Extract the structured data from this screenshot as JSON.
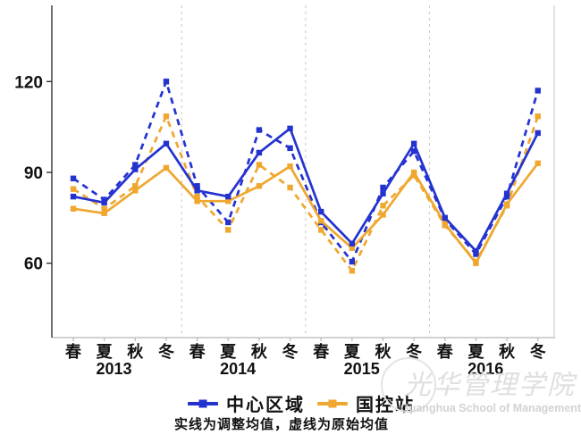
{
  "chart_data": {
    "type": "line",
    "title": "",
    "x_seasons": [
      "春",
      "夏",
      "秋",
      "冬",
      "春",
      "夏",
      "秋",
      "冬",
      "春",
      "夏",
      "秋",
      "冬",
      "春",
      "夏",
      "秋",
      "冬"
    ],
    "years": [
      "2013",
      "2014",
      "2015",
      "2016"
    ],
    "y_ticks": [
      60,
      90,
      120
    ],
    "ylim": [
      50,
      130
    ],
    "grid": "vertical-dashed-between-years",
    "legend_position": "bottom",
    "series": [
      {
        "name": "国控站 原始均值 (虚线)",
        "group": "国控站",
        "line": "dashed",
        "color": "#efa72f",
        "values": [
          84.5,
          78,
          85.5,
          108.5,
          82,
          71,
          92.5,
          85,
          71,
          57.5,
          79,
          89,
          72.5,
          60.5,
          79,
          108.5
        ]
      },
      {
        "name": "中心区域 原始均值 (虚线)",
        "group": "中心区域",
        "line": "dashed",
        "color": "#2433d0",
        "values": [
          88,
          81,
          92.5,
          120,
          85.5,
          73.5,
          104,
          98,
          73.5,
          60.5,
          85,
          97,
          74.5,
          63,
          82,
          117
        ]
      },
      {
        "name": "国控站 调整均值 (实线)",
        "group": "国控站",
        "line": "solid",
        "color": "#efa72f",
        "values": [
          78,
          76.5,
          84,
          91.5,
          80.5,
          80.5,
          85.5,
          92,
          74,
          65,
          76,
          90,
          73,
          60,
          79.5,
          93
        ]
      },
      {
        "name": "中心区域 调整均值 (实线)",
        "group": "中心区域",
        "line": "solid",
        "color": "#2433d0",
        "values": [
          82,
          80,
          91,
          99.5,
          84,
          82,
          96.5,
          104.5,
          77,
          66.5,
          83,
          99.5,
          75,
          64,
          83,
          103
        ]
      }
    ]
  },
  "legend": {
    "items": [
      {
        "label": "中心区域",
        "color": "#2433d0"
      },
      {
        "label": "国控站",
        "color": "#efa72f"
      }
    ]
  },
  "footnote": "实线为调整均值，虚线为原始均值",
  "watermark": {
    "cn": "光华管理学院",
    "en": "Guanghua School of Management"
  },
  "colors": {
    "axis": "#222222",
    "grid": "#cccccc",
    "bottom_axis": "#b8b8b8",
    "right_border": "#d0d0d0",
    "text": "#111111"
  }
}
